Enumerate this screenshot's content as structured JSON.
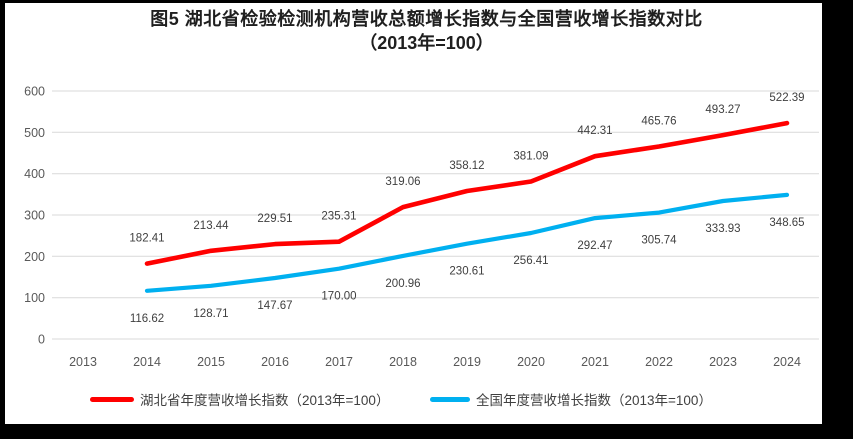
{
  "frame": {
    "border_color": "#000000",
    "canvas_color": "#ffffff"
  },
  "chart_data": {
    "type": "line",
    "title_line1": "图5 湖北省检验检测机构营收总额增长指数与全国营收增长指数对比",
    "title_line2": "（2013年=100）",
    "categories": [
      "2013",
      "2014",
      "2015",
      "2016",
      "2017",
      "2018",
      "2019",
      "2020",
      "2021",
      "2022",
      "2023",
      "2024"
    ],
    "xlabel": "",
    "ylabel": "",
    "ylim": [
      0,
      600
    ],
    "y_ticks": [
      0,
      100,
      200,
      300,
      400,
      500,
      600
    ],
    "grid": true,
    "legend_position": "bottom",
    "colors": {
      "grid": "#d9d9d9",
      "tick_text": "#595959",
      "label_text": "#3f3f3f",
      "title_text": "#1f1f1f"
    },
    "series": [
      {
        "name": "湖北省年度营收增长指数（2013年=100）",
        "color": "#ff0000",
        "label_side": "above",
        "values": [
          null,
          182.41,
          213.44,
          229.51,
          235.31,
          319.06,
          358.12,
          381.09,
          442.31,
          465.76,
          493.27,
          522.39
        ],
        "labels": [
          null,
          "182.41",
          "213.44",
          "229.51",
          "235.31",
          "319.06",
          "358.12",
          "381.09",
          "442.31",
          "465.76",
          "493.27",
          "522.39"
        ]
      },
      {
        "name": "全国年度营收增长指数（2013年=100）",
        "color": "#00b0f0",
        "label_side": "below",
        "values": [
          null,
          116.62,
          128.71,
          147.67,
          170.0,
          200.96,
          230.61,
          256.41,
          292.47,
          305.74,
          333.93,
          348.65
        ],
        "labels": [
          null,
          "116.62",
          "128.71",
          "147.67",
          "170.00",
          "200.96",
          "230.61",
          "256.41",
          "292.47",
          "305.74",
          "333.93",
          "348.65"
        ]
      }
    ]
  }
}
